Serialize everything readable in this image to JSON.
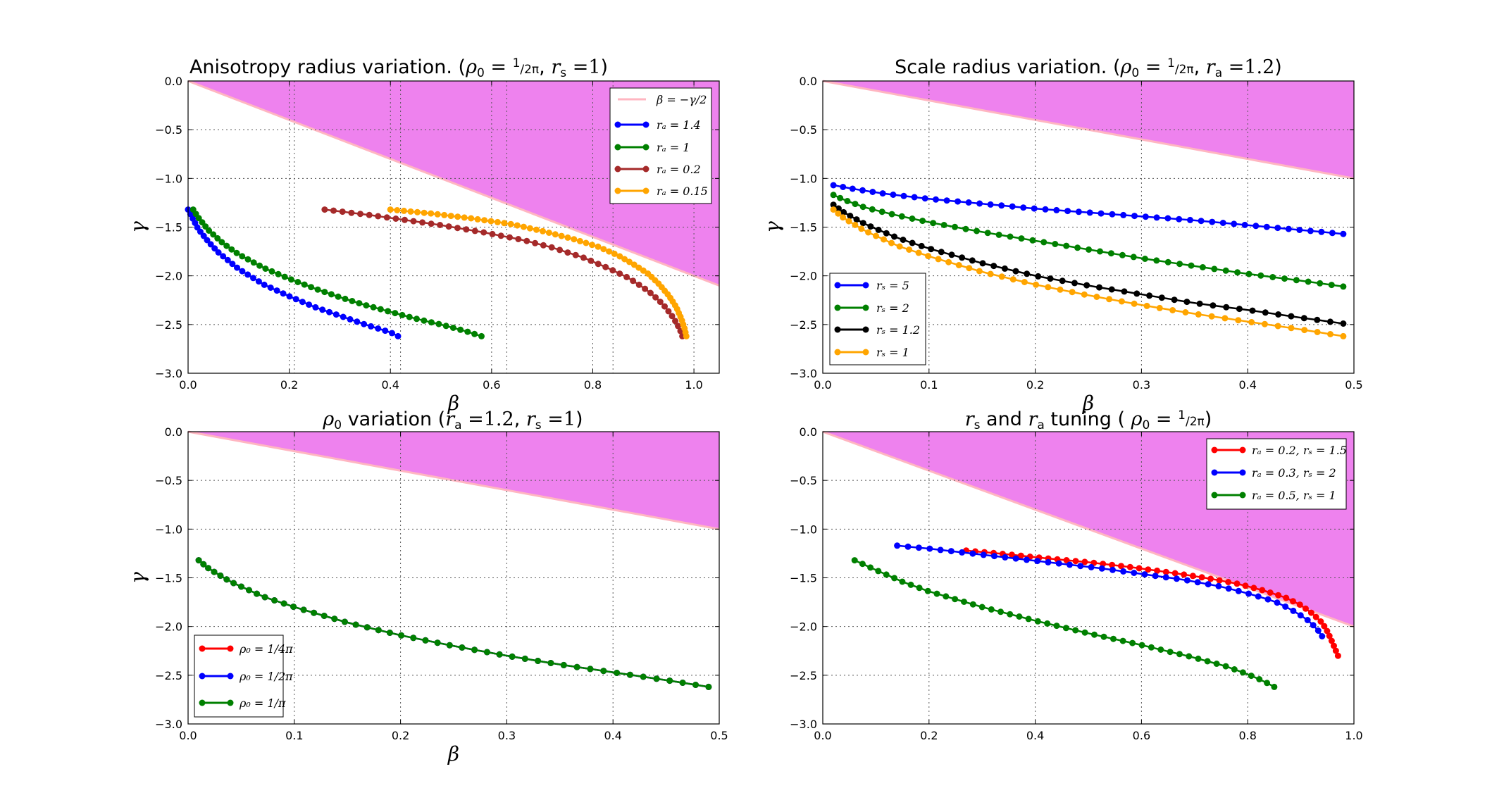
{
  "chart_data": [
    {
      "type": "line",
      "title": "Anisotropy radius variation. (ρ₀ = 1/2π, rₛ = 1)",
      "xlabel": "β",
      "ylabel": "γ",
      "xlim": [
        0.0,
        1.05
      ],
      "ylim": [
        -3.0,
        0.0
      ],
      "xticks": [
        "0.0",
        "0.2",
        "0.4",
        "0.6",
        "0.8",
        "1.0"
      ],
      "yticks": [
        "0.0",
        "−0.5",
        "−1.0",
        "−1.5",
        "−2.0",
        "−2.5",
        "−3.0"
      ],
      "grid": true,
      "legend_position": "top-right",
      "forbidden_region": {
        "boundary_label": "β = −γ/2",
        "color": "#ee82ee",
        "line_color": "#ffb6c1"
      },
      "series": [
        {
          "name": "rₐ = 1.4",
          "color": "#0000ff",
          "points": 40,
          "x": [
            0.0,
            0.01,
            0.02,
            0.04,
            0.06,
            0.1,
            0.15,
            0.2,
            0.25,
            0.3,
            0.35,
            0.4,
            0.415
          ],
          "y": [
            -1.32,
            -1.42,
            -1.52,
            -1.65,
            -1.76,
            -1.93,
            -2.09,
            -2.21,
            -2.32,
            -2.41,
            -2.5,
            -2.58,
            -2.62
          ]
        },
        {
          "name": "rₐ = 1",
          "color": "#008000",
          "points": 48,
          "x": [
            0.01,
            0.02,
            0.04,
            0.07,
            0.1,
            0.15,
            0.2,
            0.25,
            0.3,
            0.35,
            0.4,
            0.45,
            0.5,
            0.55,
            0.58
          ],
          "y": [
            -1.32,
            -1.4,
            -1.53,
            -1.67,
            -1.78,
            -1.92,
            -2.03,
            -2.13,
            -2.22,
            -2.3,
            -2.37,
            -2.44,
            -2.5,
            -2.57,
            -2.62
          ]
        },
        {
          "name": "rₐ = 0.2",
          "color": "#a52a2a",
          "points": 50,
          "x": [
            0.27,
            0.35,
            0.42,
            0.5,
            0.58,
            0.66,
            0.72,
            0.78,
            0.83,
            0.87,
            0.9,
            0.92,
            0.94,
            0.955,
            0.965,
            0.973,
            0.977
          ],
          "y": [
            -1.32,
            -1.37,
            -1.42,
            -1.48,
            -1.55,
            -1.63,
            -1.71,
            -1.81,
            -1.92,
            -2.02,
            -2.12,
            -2.2,
            -2.3,
            -2.4,
            -2.48,
            -2.56,
            -2.62
          ]
        },
        {
          "name": "rₐ = 0.15",
          "color": "#ffa500",
          "points": 60,
          "x": [
            0.4,
            0.48,
            0.56,
            0.64,
            0.7,
            0.76,
            0.81,
            0.85,
            0.88,
            0.91,
            0.93,
            0.95,
            0.965,
            0.975,
            0.982,
            0.985
          ],
          "y": [
            -1.32,
            -1.36,
            -1.41,
            -1.47,
            -1.54,
            -1.62,
            -1.7,
            -1.79,
            -1.88,
            -1.98,
            -2.08,
            -2.2,
            -2.32,
            -2.44,
            -2.55,
            -2.62
          ]
        }
      ]
    },
    {
      "type": "line",
      "title": "Scale radius variation. (ρ₀ = 1/2π, rₐ = 1.2)",
      "xlabel": "β",
      "ylabel": "γ",
      "xlim": [
        0.0,
        0.5
      ],
      "ylim": [
        -3.0,
        0.0
      ],
      "xticks": [
        "0.0",
        "0.1",
        "0.2",
        "0.3",
        "0.4",
        "0.5"
      ],
      "yticks": [
        "0.0",
        "−0.5",
        "−1.0",
        "−1.5",
        "−2.0",
        "−2.5",
        "−3.0"
      ],
      "grid": true,
      "legend_position": "bottom-left",
      "forbidden_region": {
        "color": "#ee82ee",
        "line_color": "#ffb6c1"
      },
      "series": [
        {
          "name": "rₛ = 5",
          "color": "#0000ff",
          "points": 48,
          "x": [
            0.01,
            0.03,
            0.06,
            0.1,
            0.15,
            0.2,
            0.25,
            0.3,
            0.35,
            0.4,
            0.45,
            0.49
          ],
          "y": [
            -1.07,
            -1.11,
            -1.16,
            -1.21,
            -1.26,
            -1.31,
            -1.35,
            -1.39,
            -1.43,
            -1.48,
            -1.53,
            -1.57
          ]
        },
        {
          "name": "rₛ = 2",
          "color": "#008000",
          "points": 48,
          "x": [
            0.01,
            0.02,
            0.04,
            0.07,
            0.1,
            0.15,
            0.2,
            0.25,
            0.3,
            0.35,
            0.4,
            0.45,
            0.49
          ],
          "y": [
            -1.17,
            -1.22,
            -1.3,
            -1.38,
            -1.45,
            -1.55,
            -1.64,
            -1.73,
            -1.82,
            -1.9,
            -1.98,
            -2.05,
            -2.11
          ]
        },
        {
          "name": "rₛ = 1.2",
          "color": "#000000",
          "points": 48,
          "x": [
            0.01,
            0.02,
            0.04,
            0.07,
            0.1,
            0.15,
            0.2,
            0.25,
            0.3,
            0.35,
            0.4,
            0.45,
            0.49
          ],
          "y": [
            -1.27,
            -1.35,
            -1.47,
            -1.61,
            -1.72,
            -1.87,
            -2.0,
            -2.1,
            -2.19,
            -2.28,
            -2.35,
            -2.43,
            -2.49
          ]
        },
        {
          "name": "rₛ = 1",
          "color": "#ffa500",
          "points": 48,
          "x": [
            0.01,
            0.02,
            0.04,
            0.07,
            0.1,
            0.15,
            0.2,
            0.25,
            0.3,
            0.35,
            0.4,
            0.45,
            0.49
          ],
          "y": [
            -1.32,
            -1.41,
            -1.54,
            -1.69,
            -1.8,
            -1.96,
            -2.09,
            -2.2,
            -2.3,
            -2.39,
            -2.47,
            -2.55,
            -2.62
          ]
        }
      ]
    },
    {
      "type": "line",
      "title": "ρ₀ variation (rₐ = 1.2, rₛ = 1)",
      "xlabel": "β",
      "ylabel": "γ",
      "xlim": [
        0.0,
        0.5
      ],
      "ylim": [
        -3.0,
        0.0
      ],
      "xticks": [
        "0.0",
        "0.1",
        "0.2",
        "0.3",
        "0.4",
        "0.5"
      ],
      "yticks": [
        "0.0",
        "−0.5",
        "−1.0",
        "−1.5",
        "−2.0",
        "−2.5",
        "−3.0"
      ],
      "grid": true,
      "legend_position": "bottom-left",
      "forbidden_region": {
        "color": "#ee82ee",
        "line_color": "#ffb6c1"
      },
      "series": [
        {
          "name": "ρ₀ = 1/4π",
          "color": "#ff0000",
          "points": 48,
          "x": [
            0.01,
            0.02,
            0.04,
            0.07,
            0.1,
            0.15,
            0.2,
            0.25,
            0.3,
            0.35,
            0.4,
            0.45,
            0.49
          ],
          "y": [
            -1.32,
            -1.41,
            -1.54,
            -1.69,
            -1.8,
            -1.96,
            -2.09,
            -2.2,
            -2.3,
            -2.39,
            -2.47,
            -2.55,
            -2.62
          ]
        },
        {
          "name": "ρ₀ = 1/2π",
          "color": "#0000ff",
          "points": 48,
          "x": [
            0.01,
            0.02,
            0.04,
            0.07,
            0.1,
            0.15,
            0.2,
            0.25,
            0.3,
            0.35,
            0.4,
            0.45,
            0.49
          ],
          "y": [
            -1.32,
            -1.41,
            -1.54,
            -1.69,
            -1.8,
            -1.96,
            -2.09,
            -2.2,
            -2.3,
            -2.39,
            -2.47,
            -2.55,
            -2.62
          ]
        },
        {
          "name": "ρ₀ = 1/π",
          "color": "#008000",
          "points": 48,
          "x": [
            0.01,
            0.02,
            0.04,
            0.07,
            0.1,
            0.15,
            0.2,
            0.25,
            0.3,
            0.35,
            0.4,
            0.45,
            0.49
          ],
          "y": [
            -1.32,
            -1.41,
            -1.54,
            -1.69,
            -1.8,
            -1.96,
            -2.09,
            -2.2,
            -2.3,
            -2.39,
            -2.47,
            -2.55,
            -2.62
          ]
        }
      ]
    },
    {
      "type": "line",
      "title": "rₛ and rₐ tuning ( ρ₀ = 1/2π)",
      "xlabel": "",
      "ylabel": "",
      "xlim": [
        0.0,
        1.0
      ],
      "ylim": [
        -3.0,
        0.0
      ],
      "xticks": [
        "0.0",
        "0.2",
        "0.4",
        "0.6",
        "0.8",
        "1.0"
      ],
      "yticks": [
        "0.0",
        "−0.5",
        "−1.0",
        "−1.5",
        "−2.0",
        "−2.5",
        "−3.0"
      ],
      "grid": true,
      "legend_position": "top-right",
      "forbidden_region": {
        "color": "#ee82ee",
        "line_color": "#ffb6c1"
      },
      "series": [
        {
          "name": "rₐ = 0.2, rₛ = 1.5",
          "color": "#ff0000",
          "points": 50,
          "x": [
            0.27,
            0.35,
            0.42,
            0.5,
            0.58,
            0.66,
            0.72,
            0.78,
            0.83,
            0.87,
            0.9,
            0.92,
            0.94,
            0.95,
            0.96,
            0.97
          ],
          "y": [
            -1.22,
            -1.26,
            -1.3,
            -1.34,
            -1.39,
            -1.45,
            -1.5,
            -1.56,
            -1.63,
            -1.7,
            -1.78,
            -1.86,
            -1.96,
            -2.05,
            -2.17,
            -2.3
          ]
        },
        {
          "name": "rₐ = 0.3, rₛ = 2",
          "color": "#0000ff",
          "points": 44,
          "x": [
            0.14,
            0.2,
            0.28,
            0.36,
            0.44,
            0.52,
            0.6,
            0.68,
            0.75,
            0.8,
            0.85,
            0.88,
            0.91,
            0.93,
            0.94
          ],
          "y": [
            -1.17,
            -1.2,
            -1.25,
            -1.3,
            -1.35,
            -1.4,
            -1.46,
            -1.52,
            -1.59,
            -1.66,
            -1.74,
            -1.82,
            -1.92,
            -2.02,
            -2.1
          ]
        },
        {
          "name": "rₐ = 0.5, rₛ = 1",
          "color": "#008000",
          "points": 48,
          "x": [
            0.06,
            0.1,
            0.15,
            0.2,
            0.3,
            0.4,
            0.5,
            0.6,
            0.7,
            0.76,
            0.8,
            0.83,
            0.85
          ],
          "y": [
            -1.32,
            -1.42,
            -1.54,
            -1.64,
            -1.8,
            -1.94,
            -2.07,
            -2.19,
            -2.32,
            -2.41,
            -2.49,
            -2.56,
            -2.62
          ]
        }
      ]
    }
  ]
}
